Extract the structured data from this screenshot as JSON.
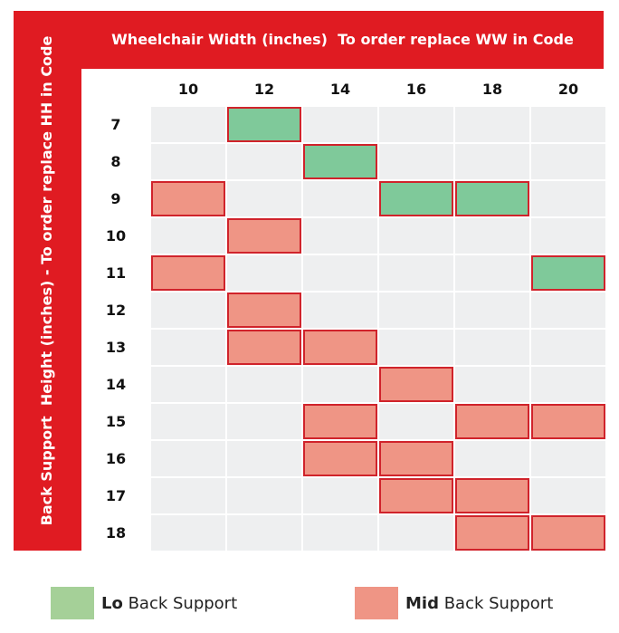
{
  "chart_data": {
    "type": "heatmap",
    "xlabel": "Wheelchair Width (inches)  To order replace WW in Code",
    "ylabel": "Back Support  Height (inches) - To order replace HH in Code",
    "x": [
      "10",
      "12",
      "14",
      "16",
      "18",
      "20"
    ],
    "y": [
      "7",
      "8",
      "9",
      "10",
      "11",
      "12",
      "13",
      "14",
      "15",
      "16",
      "17",
      "18"
    ],
    "cells": [
      {
        "h": "7",
        "w": "12",
        "type": "lo"
      },
      {
        "h": "8",
        "w": "14",
        "type": "lo"
      },
      {
        "h": "9",
        "w": "10",
        "type": "mid"
      },
      {
        "h": "9",
        "w": "16",
        "type": "lo"
      },
      {
        "h": "9",
        "w": "18",
        "type": "lo"
      },
      {
        "h": "10",
        "w": "12",
        "type": "mid"
      },
      {
        "h": "11",
        "w": "10",
        "type": "mid"
      },
      {
        "h": "11",
        "w": "20",
        "type": "lo"
      },
      {
        "h": "12",
        "w": "12",
        "type": "mid"
      },
      {
        "h": "13",
        "w": "12",
        "type": "mid"
      },
      {
        "h": "13",
        "w": "14",
        "type": "mid"
      },
      {
        "h": "14",
        "w": "16",
        "type": "mid"
      },
      {
        "h": "15",
        "w": "14",
        "type": "mid"
      },
      {
        "h": "15",
        "w": "18",
        "type": "mid"
      },
      {
        "h": "15",
        "w": "20",
        "type": "mid"
      },
      {
        "h": "16",
        "w": "14",
        "type": "mid"
      },
      {
        "h": "16",
        "w": "16",
        "type": "mid"
      },
      {
        "h": "17",
        "w": "16",
        "type": "mid"
      },
      {
        "h": "17",
        "w": "18",
        "type": "mid"
      },
      {
        "h": "18",
        "w": "18",
        "type": "mid"
      },
      {
        "h": "18",
        "w": "20",
        "type": "mid"
      }
    ],
    "legend": [
      {
        "key": "lo",
        "bold": "Lo",
        "label": " Back Support",
        "color": "#a5d098"
      },
      {
        "key": "mid",
        "bold": "Mid",
        "label": " Back Support",
        "color": "#ef9585"
      }
    ],
    "colors": {
      "frame": "#e01b22",
      "lo": "#7fc99a",
      "mid": "#ef9585",
      "empty": "#eeeff0",
      "outline": "#d0232b"
    }
  }
}
